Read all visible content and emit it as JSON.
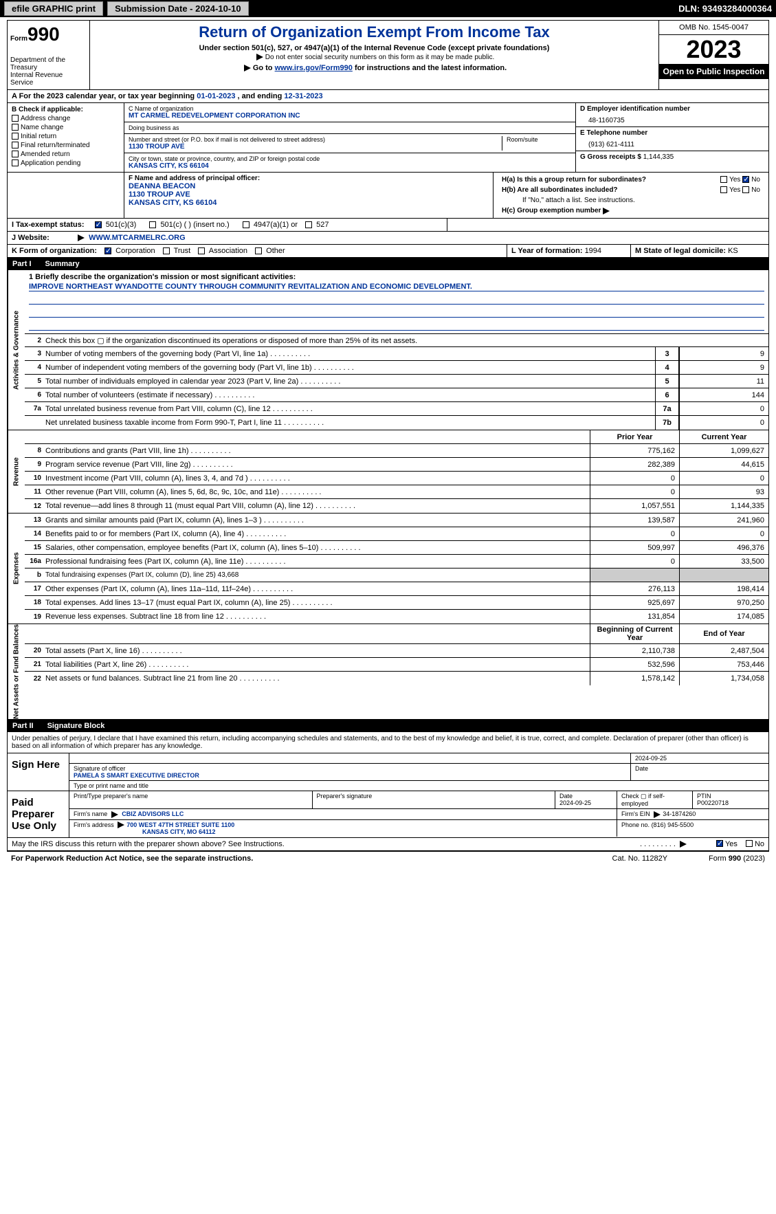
{
  "topbar": {
    "efile": "efile GRAPHIC print",
    "submission_label": "Submission Date - 2024-10-10",
    "dln_label": "DLN: 93493284000364"
  },
  "header": {
    "form_small": "Form",
    "form_num": "990",
    "title": "Return of Organization Exempt From Income Tax",
    "subtitle": "Under section 501(c), 527, or 4947(a)(1) of the Internal Revenue Code (except private foundations)",
    "note1": "Do not enter social security numbers on this form as it may be made public.",
    "note2_pre": "Go to ",
    "note2_link": "www.irs.gov/Form990",
    "note2_post": " for instructions and the latest information.",
    "dept": "Department of the Treasury\nInternal Revenue Service",
    "omb": "OMB No. 1545-0047",
    "year": "2023",
    "inspection": "Open to Public Inspection"
  },
  "row_a": {
    "prefix": "A  For the 2023 calendar year, or tax year beginning ",
    "begin": "01-01-2023",
    "mid": "   , and ending ",
    "end": "12-31-2023"
  },
  "col_b": {
    "header": "B Check if applicable:",
    "opts": [
      "Address change",
      "Name change",
      "Initial return",
      "Final return/terminated",
      "Amended return",
      "Application pending"
    ]
  },
  "col_c": {
    "name_label": "C Name of organization",
    "name": "MT CARMEL REDEVELOPMENT CORPORATION INC",
    "dba_label": "Doing business as",
    "addr_label": "Number and street (or P.O. box if mail is not delivered to street address)",
    "addr": "1130 TROUP AVE",
    "room_label": "Room/suite",
    "city_label": "City or town, state or province, country, and ZIP or foreign postal code",
    "city": "KANSAS CITY, KS  66104",
    "officer_label": "F Name and address of principal officer:",
    "officer_name": "DEANNA BEACON",
    "officer_addr1": "1130 TROUP AVE",
    "officer_addr2": "KANSAS CITY, KS  66104"
  },
  "col_d": {
    "ein_label": "D Employer identification number",
    "ein": "48-1160735",
    "phone_label": "E Telephone number",
    "phone": "(913) 621-4111",
    "gross_label": "G Gross receipts $ ",
    "gross": "1,144,335"
  },
  "h": {
    "a_label": "H(a)  Is this a group return for subordinates?",
    "b_label": "H(b)  Are all subordinates included?",
    "b_note": "If \"No,\" attach a list. See instructions.",
    "c_label": "H(c)  Group exemption number",
    "yes": "Yes",
    "no": "No"
  },
  "i": {
    "label": "I    Tax-exempt status:",
    "opt1": "501(c)(3)",
    "opt2": "501(c) (  ) (insert no.)",
    "opt3": "4947(a)(1) or",
    "opt4": "527"
  },
  "j": {
    "label": "J    Website:",
    "url_arrow": "▶",
    "url": "WWW.MTCARMELRC.ORG"
  },
  "k": {
    "label": "K Form of organization:",
    "opts": [
      "Corporation",
      "Trust",
      "Association",
      "Other"
    ]
  },
  "l": {
    "label": "L Year of formation: ",
    "val": "1994"
  },
  "m": {
    "label": "M State of legal domicile: ",
    "val": "KS"
  },
  "part1": {
    "num": "Part I",
    "title": "Summary"
  },
  "summary": {
    "sections": {
      "gov": "Activities & Governance",
      "rev": "Revenue",
      "exp": "Expenses",
      "net": "Net Assets or Fund Balances"
    },
    "q1_label": "1   Briefly describe the organization's mission or most significant activities:",
    "mission": "IMPROVE NORTHEAST WYANDOTTE COUNTY THROUGH COMMUNITY REVITALIZATION AND ECONOMIC DEVELOPMENT.",
    "q2": "Check this box ▢ if the organization discontinued its operations or disposed of more than 25% of its net assets.",
    "headers": {
      "prior": "Prior Year",
      "current": "Current Year",
      "begin": "Beginning of Current Year",
      "end": "End of Year"
    },
    "lines_gov": [
      {
        "n": "3",
        "d": "Number of voting members of the governing body (Part VI, line 1a)",
        "box": "3",
        "v": "9"
      },
      {
        "n": "4",
        "d": "Number of independent voting members of the governing body (Part VI, line 1b)",
        "box": "4",
        "v": "9"
      },
      {
        "n": "5",
        "d": "Total number of individuals employed in calendar year 2023 (Part V, line 2a)",
        "box": "5",
        "v": "11"
      },
      {
        "n": "6",
        "d": "Total number of volunteers (estimate if necessary)",
        "box": "6",
        "v": "144"
      },
      {
        "n": "7a",
        "d": "Total unrelated business revenue from Part VIII, column (C), line 12",
        "box": "7a",
        "v": "0"
      },
      {
        "n": "",
        "d": "Net unrelated business taxable income from Form 990-T, Part I, line 11",
        "box": "7b",
        "v": "0"
      }
    ],
    "lines_rev": [
      {
        "n": "8",
        "d": "Contributions and grants (Part VIII, line 1h)",
        "p": "775,162",
        "c": "1,099,627"
      },
      {
        "n": "9",
        "d": "Program service revenue (Part VIII, line 2g)",
        "p": "282,389",
        "c": "44,615"
      },
      {
        "n": "10",
        "d": "Investment income (Part VIII, column (A), lines 3, 4, and 7d )",
        "p": "0",
        "c": "0"
      },
      {
        "n": "11",
        "d": "Other revenue (Part VIII, column (A), lines 5, 6d, 8c, 9c, 10c, and 11e)",
        "p": "0",
        "c": "93"
      },
      {
        "n": "12",
        "d": "Total revenue—add lines 8 through 11 (must equal Part VIII, column (A), line 12)",
        "p": "1,057,551",
        "c": "1,144,335"
      }
    ],
    "lines_exp": [
      {
        "n": "13",
        "d": "Grants and similar amounts paid (Part IX, column (A), lines 1–3 )",
        "p": "139,587",
        "c": "241,960"
      },
      {
        "n": "14",
        "d": "Benefits paid to or for members (Part IX, column (A), line 4)",
        "p": "0",
        "c": "0"
      },
      {
        "n": "15",
        "d": "Salaries, other compensation, employee benefits (Part IX, column (A), lines 5–10)",
        "p": "509,997",
        "c": "496,376"
      },
      {
        "n": "16a",
        "d": "Professional fundraising fees (Part IX, column (A), line 11e)",
        "p": "0",
        "c": "33,500"
      },
      {
        "n": "b",
        "d": "Total fundraising expenses (Part IX, column (D), line 25) 43,668",
        "grey": true
      },
      {
        "n": "17",
        "d": "Other expenses (Part IX, column (A), lines 11a–11d, 11f–24e)",
        "p": "276,113",
        "c": "198,414"
      },
      {
        "n": "18",
        "d": "Total expenses. Add lines 13–17 (must equal Part IX, column (A), line 25)",
        "p": "925,697",
        "c": "970,250"
      },
      {
        "n": "19",
        "d": "Revenue less expenses. Subtract line 18 from line 12",
        "p": "131,854",
        "c": "174,085"
      }
    ],
    "lines_net": [
      {
        "n": "20",
        "d": "Total assets (Part X, line 16)",
        "p": "2,110,738",
        "c": "2,487,504"
      },
      {
        "n": "21",
        "d": "Total liabilities (Part X, line 26)",
        "p": "532,596",
        "c": "753,446"
      },
      {
        "n": "22",
        "d": "Net assets or fund balances. Subtract line 21 from line 20",
        "p": "1,578,142",
        "c": "1,734,058"
      }
    ]
  },
  "part2": {
    "num": "Part II",
    "title": "Signature Block"
  },
  "sig": {
    "declaration": "Under penalties of perjury, I declare that I have examined this return, including accompanying schedules and statements, and to the best of my knowledge and belief, it is true, correct, and complete. Declaration of preparer (other than officer) is based on all information of which preparer has any knowledge.",
    "sign_here": "Sign Here",
    "sig_officer_label": "Signature of officer",
    "officer_name": "PAMELA S SMART  EXECUTIVE DIRECTOR",
    "type_label": "Type or print name and title",
    "date_label": "Date",
    "date1": "2024-09-25",
    "paid": "Paid Preparer Use Only",
    "print_label": "Print/Type preparer's name",
    "prep_sig_label": "Preparer's signature",
    "date2": "2024-09-25",
    "check_self": "Check ▢ if self-employed",
    "ptin_label": "PTIN",
    "ptin": "P00220718",
    "firm_name_label": "Firm's name",
    "firm_name": "CBIZ ADVISORS LLC",
    "firm_ein_label": "Firm's EIN",
    "firm_ein": "34-1874260",
    "firm_addr_label": "Firm's address",
    "firm_addr1": "700 WEST 47TH STREET SUITE 1100",
    "firm_addr2": "KANSAS CITY, MO  64112",
    "phone_label": "Phone no.",
    "phone": "(816) 945-5500",
    "discuss": "May the IRS discuss this return with the preparer shown above? See Instructions.",
    "yes": "Yes",
    "no": "No"
  },
  "footer": {
    "paperwork": "For Paperwork Reduction Act Notice, see the separate instructions.",
    "cat": "Cat. No. 11282Y",
    "form": "Form 990 (2023)"
  }
}
